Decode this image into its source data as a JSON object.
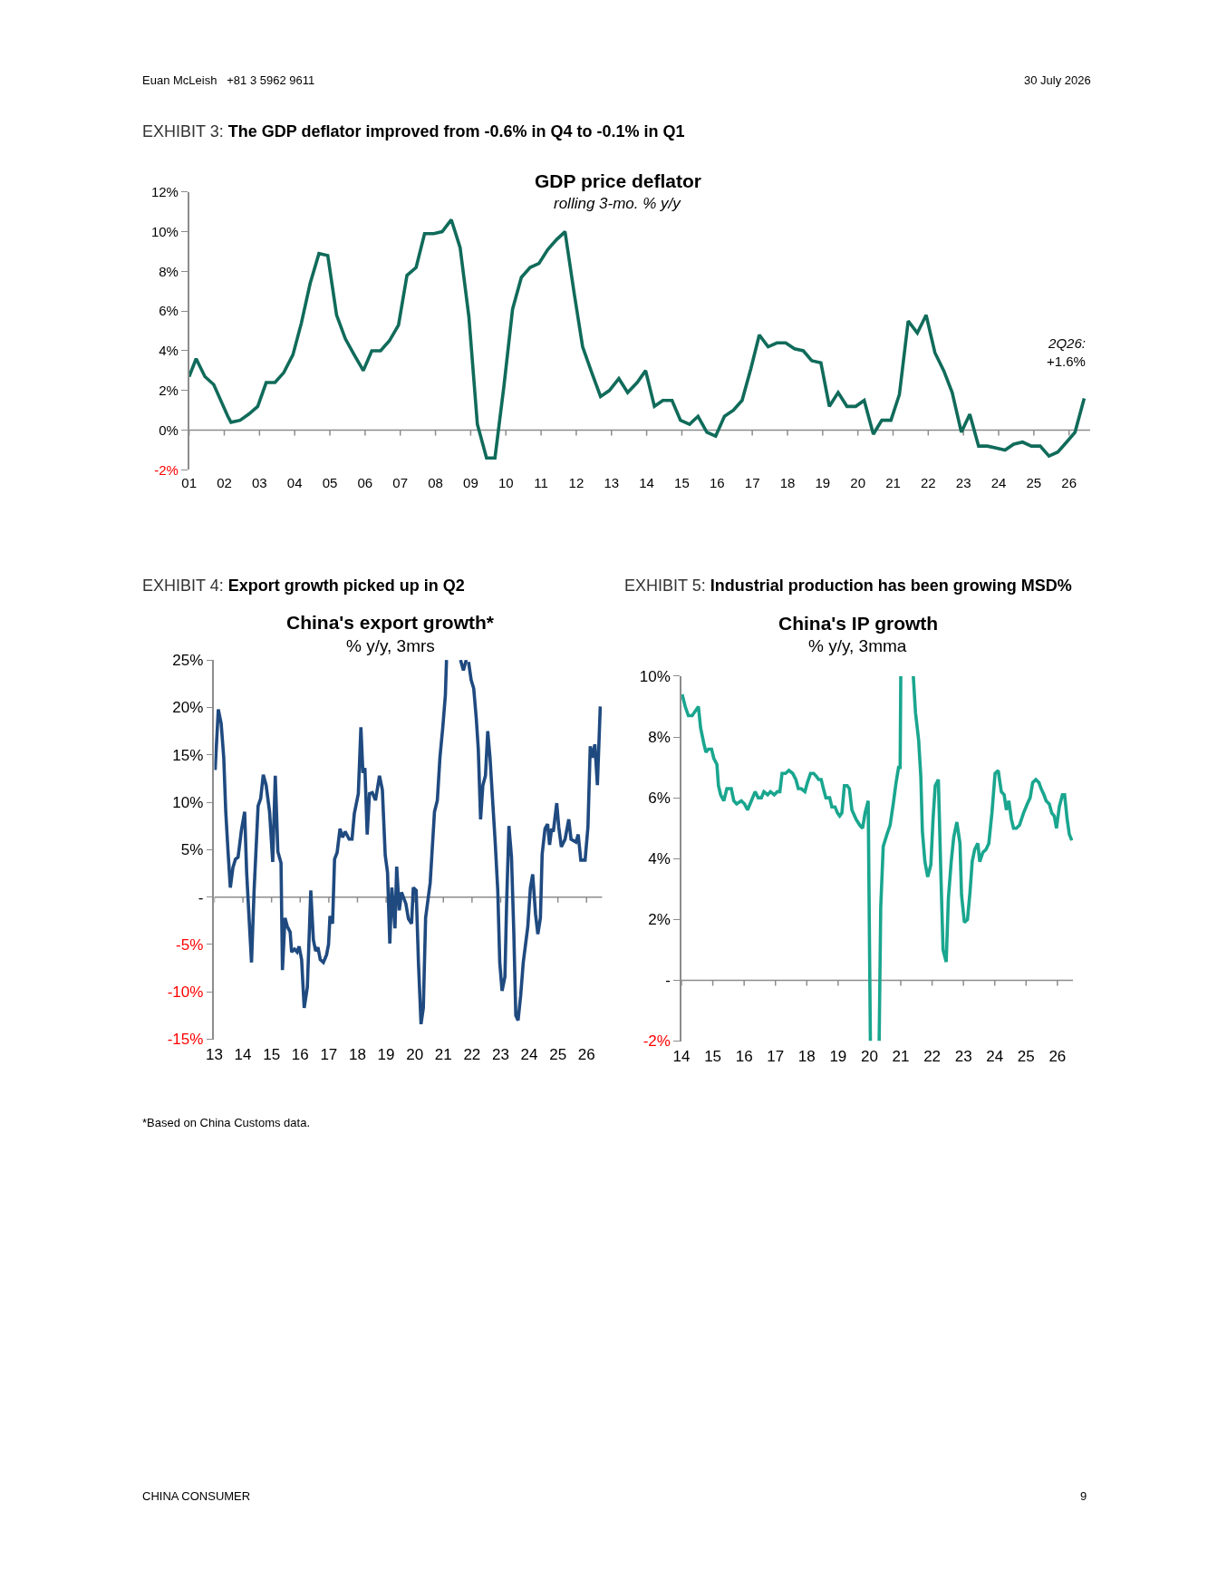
{
  "chart_data": [
    {
      "type": "line",
      "title": "GDP price deflator",
      "subtitle": "rolling 3-mo. % y/y",
      "color": "#106b5a",
      "annotations": [
        "Euan McLeish   +81 3 5962 9611",
        "30 July 2026",
        "EXHIBIT 3: The GDP deflator improved from -0.6% in Q4 to -0.1% in Q1",
        {
          "text": "2Q26:\n+1.6%",
          "x": 2026.43,
          "y": 1.61
        }
      ],
      "x": [
        2001.0,
        2001.2,
        2001.45,
        2001.7,
        2001.95,
        2002.1,
        2002.19,
        2002.45,
        2002.69,
        2002.95,
        2003.19,
        2003.44,
        2003.69,
        2003.95,
        2004.19,
        2004.44,
        2004.69,
        2004.94,
        2005.19,
        2005.44,
        2005.69,
        2005.95,
        2006.19,
        2006.44,
        2006.69,
        2006.95,
        2007.19,
        2007.45,
        2007.69,
        2007.95,
        2008.19,
        2008.45,
        2008.7,
        2008.95,
        2009.19,
        2009.45,
        2009.69,
        2009.95,
        2010.19,
        2010.44,
        2010.69,
        2010.94,
        2011.19,
        2011.44,
        2011.68,
        2011.94,
        2012.18,
        2012.44,
        2012.69,
        2012.94,
        2013.21,
        2013.46,
        2013.73,
        2013.97,
        2014.22,
        2014.46,
        2014.72,
        2014.96,
        2015.22,
        2015.46,
        2015.71,
        2015.96,
        2016.21,
        2016.46,
        2016.71,
        2016.96,
        2017.2,
        2017.45,
        2017.7,
        2017.95,
        2018.2,
        2018.45,
        2018.69,
        2018.95,
        2019.19,
        2019.44,
        2019.69,
        2019.94,
        2020.18,
        2020.44,
        2020.68,
        2020.94,
        2021.18,
        2021.43,
        2021.69,
        2021.94,
        2022.19,
        2022.44,
        2022.68,
        2022.94,
        2023.18,
        2023.43,
        2023.68,
        2023.93,
        2024.18,
        2024.43,
        2024.68,
        2024.93,
        2025.18,
        2025.43,
        2025.68,
        2025.93,
        2026.17,
        2026.43
      ],
      "values": [
        2.7,
        3.6,
        2.7,
        2.3,
        1.3,
        0.7,
        0.4,
        0.5,
        0.8,
        1.2,
        2.4,
        2.4,
        2.9,
        3.8,
        5.4,
        7.4,
        8.9,
        8.8,
        5.8,
        4.6,
        3.8,
        3.0,
        4.0,
        4.0,
        4.5,
        5.3,
        7.8,
        8.2,
        9.9,
        9.9,
        10.0,
        10.6,
        9.2,
        5.7,
        0.3,
        -1.4,
        -1.4,
        2.3,
        6.1,
        7.7,
        8.2,
        8.4,
        9.1,
        9.6,
        10.0,
        6.9,
        4.2,
        2.9,
        1.7,
        2.0,
        2.6,
        1.9,
        2.4,
        3.0,
        1.2,
        1.5,
        1.5,
        0.5,
        0.3,
        0.7,
        -0.1,
        -0.3,
        0.7,
        1.0,
        1.5,
        3.1,
        4.8,
        4.2,
        4.4,
        4.4,
        4.1,
        4.0,
        3.5,
        3.4,
        1.2,
        1.9,
        1.2,
        1.2,
        1.5,
        -0.2,
        0.5,
        0.5,
        1.8,
        5.5,
        4.9,
        5.8,
        3.9,
        3.0,
        1.9,
        -0.1,
        0.8,
        -0.8,
        -0.8,
        -0.9,
        -1.0,
        -0.7,
        -0.6,
        -0.8,
        -0.8,
        -1.3,
        -1.1,
        -0.6,
        -0.1,
        1.6
      ],
      "xlim": [
        2001,
        2026.6
      ],
      "xticks": [
        {
          "value": 2001,
          "label": "01"
        },
        {
          "value": 2002,
          "label": "02"
        },
        {
          "value": 2003,
          "label": "03"
        },
        {
          "value": 2004,
          "label": "04"
        },
        {
          "value": 2005,
          "label": "05"
        },
        {
          "value": 2006,
          "label": "06"
        },
        {
          "value": 2007,
          "label": "07"
        },
        {
          "value": 2008,
          "label": "08"
        },
        {
          "value": 2009,
          "label": "09"
        },
        {
          "value": 2010,
          "label": "10"
        },
        {
          "value": 2011,
          "label": "11"
        },
        {
          "value": 2012,
          "label": "12"
        },
        {
          "value": 2013,
          "label": "13"
        },
        {
          "value": 2014,
          "label": "14"
        },
        {
          "value": 2015,
          "label": "15"
        },
        {
          "value": 2016,
          "label": "16"
        },
        {
          "value": 2017,
          "label": "17"
        },
        {
          "value": 2018,
          "label": "18"
        },
        {
          "value": 2019,
          "label": "19"
        },
        {
          "value": 2020,
          "label": "20"
        },
        {
          "value": 2021,
          "label": "21"
        },
        {
          "value": 2022,
          "label": "22"
        },
        {
          "value": 2023,
          "label": "23"
        },
        {
          "value": 2024,
          "label": "24"
        },
        {
          "value": 2025,
          "label": "25"
        },
        {
          "value": 2026,
          "label": "26"
        }
      ],
      "ylim": [
        -2,
        12
      ],
      "yticks": [
        {
          "value": -2,
          "label": "-2%"
        },
        {
          "value": 0,
          "label": "0%"
        },
        {
          "value": 2,
          "label": "2%"
        },
        {
          "value": 4,
          "label": "4%"
        },
        {
          "value": 6,
          "label": "6%"
        },
        {
          "value": 8,
          "label": "8%"
        },
        {
          "value": 10,
          "label": "10%"
        },
        {
          "value": 12,
          "label": "12%"
        }
      ]
    },
    {
      "type": "line",
      "title": "China's export growth*",
      "subtitle": "% y/y, 3mrs",
      "color": "#1f4a80",
      "annotations": [
        "EXHIBIT 4: Export growth picked up in Q2",
        "*Based on China Customs data."
      ],
      "x": [
        2013.03,
        2013.14,
        2013.24,
        2013.33,
        2013.4,
        2013.48,
        2013.56,
        2013.65,
        2013.74,
        2013.83,
        2013.95,
        2014.06,
        2014.13,
        2014.22,
        2014.3,
        2014.39,
        2014.53,
        2014.62,
        2014.71,
        2014.81,
        2014.93,
        2015.04,
        2015.13,
        2015.22,
        2015.33,
        2015.38,
        2015.47,
        2015.55,
        2015.65,
        2015.7,
        2015.8,
        2015.89,
        2015.96,
        2016.05,
        2016.14,
        2016.25,
        2016.37,
        2016.46,
        2016.54,
        2016.62,
        2016.7,
        2016.81,
        2016.92,
        2016.99,
        2017.04,
        2017.13,
        2017.2,
        2017.29,
        2017.39,
        2017.48,
        2017.57,
        2017.71,
        2017.81,
        2017.89,
        2018.03,
        2018.12,
        2018.19,
        2018.26,
        2018.34,
        2018.42,
        2018.52,
        2018.63,
        2018.77,
        2018.87,
        2018.97,
        2019.05,
        2019.13,
        2019.2,
        2019.31,
        2019.37,
        2019.46,
        2019.54,
        2019.69,
        2019.78,
        2019.89,
        2019.95,
        2020.05,
        2020.13,
        2020.22,
        2020.3,
        2020.38,
        2020.54,
        2020.69,
        2020.79,
        2020.88,
        2020.98,
        2021.07,
        2021.11,
        2021.35,
        2021.6,
        2021.7,
        2021.8,
        2021.84,
        2021.88,
        2021.97,
        2022.06,
        2022.15,
        2022.22,
        2022.3,
        2022.38,
        2022.47,
        2022.55,
        2022.63,
        2022.72,
        2022.81,
        2022.9,
        2022.97,
        2023.05,
        2023.15,
        2023.21,
        2023.29,
        2023.38,
        2023.46,
        2023.53,
        2023.61,
        2023.7,
        2023.79,
        2023.95,
        2024.04,
        2024.12,
        2024.22,
        2024.3,
        2024.39,
        2024.45,
        2024.55,
        2024.64,
        2024.71,
        2024.78,
        2024.84,
        2024.96,
        2025.03,
        2025.12,
        2025.25,
        2025.38,
        2025.46,
        2025.63,
        2025.71,
        2025.8,
        2025.95,
        2026.05,
        2026.13,
        2026.2,
        2026.29,
        2026.38,
        2026.48
      ],
      "values": [
        13.4,
        19.8,
        18.3,
        14.7,
        9.0,
        4.8,
        1.0,
        3.1,
        4.0,
        4.2,
        7.1,
        9.0,
        2.6,
        -2.5,
        -6.9,
        0.7,
        9.6,
        10.4,
        12.9,
        11.8,
        9.0,
        3.7,
        12.8,
        4.8,
        3.6,
        -7.7,
        -2.2,
        -3.1,
        -3.7,
        -5.8,
        -5.5,
        -5.8,
        -5.2,
        -6.6,
        -11.7,
        -9.5,
        0.7,
        -4.5,
        -5.7,
        -5.3,
        -6.6,
        -6.9,
        -6.1,
        -5.0,
        -2.0,
        -2.8,
        4.0,
        4.7,
        7.2,
        6.3,
        6.9,
        6.1,
        6.1,
        8.8,
        10.9,
        17.9,
        13.1,
        13.6,
        6.6,
        10.9,
        11.0,
        10.2,
        12.8,
        11.3,
        4.4,
        2.6,
        -4.9,
        1.0,
        -3.3,
        3.2,
        -1.4,
        0.5,
        -0.7,
        -2.3,
        -2.8,
        1.0,
        0.7,
        -6.9,
        -13.4,
        -11.7,
        -2.2,
        1.5,
        9.0,
        10.2,
        14.7,
        17.9,
        21.3,
        25.0,
        null,
        25.0,
        23.9,
        25.0,
        null,
        24.8,
        22.9,
        22.0,
        18.8,
        15.6,
        8.2,
        11.8,
        12.8,
        17.5,
        14.7,
        10.2,
        5.8,
        0.7,
        -6.9,
        -9.9,
        -8.4,
        -0.6,
        7.5,
        4.2,
        -3.7,
        -12.5,
        -13.0,
        -10.4,
        -6.9,
        -3.1,
        1.0,
        2.4,
        -1.8,
        -3.9,
        -2.2,
        4.5,
        7.2,
        7.7,
        5.5,
        7.2,
        6.9,
        9.9,
        7.4,
        5.3,
        6.1,
        8.2,
        6.1,
        5.8,
        6.6,
        3.9,
        3.9,
        7.4,
        15.9,
        14.7,
        16.1,
        11.8,
        20.1
      ],
      "xlim": [
        2013,
        2026.55
      ],
      "xticks": [
        {
          "value": 2013,
          "label": "13"
        },
        {
          "value": 2014,
          "label": "14"
        },
        {
          "value": 2015,
          "label": "15"
        },
        {
          "value": 2016,
          "label": "16"
        },
        {
          "value": 2017,
          "label": "17"
        },
        {
          "value": 2018,
          "label": "18"
        },
        {
          "value": 2019,
          "label": "19"
        },
        {
          "value": 2020,
          "label": "20"
        },
        {
          "value": 2021,
          "label": "21"
        },
        {
          "value": 2022,
          "label": "22"
        },
        {
          "value": 2023,
          "label": "23"
        },
        {
          "value": 2024,
          "label": "24"
        },
        {
          "value": 2025,
          "label": "25"
        },
        {
          "value": 2026,
          "label": "26"
        }
      ],
      "ylim": [
        -15,
        25
      ],
      "yticks": [
        {
          "value": -15,
          "label": "-15%"
        },
        {
          "value": -10,
          "label": "-10%"
        },
        {
          "value": -5,
          "label": "-5%"
        },
        {
          "value": 0,
          "label": "-"
        },
        {
          "value": 5,
          "label": "5%"
        },
        {
          "value": 10,
          "label": "10%"
        },
        {
          "value": 15,
          "label": "15%"
        },
        {
          "value": 20,
          "label": "20%"
        },
        {
          "value": 25,
          "label": "25%"
        }
      ]
    },
    {
      "type": "line",
      "title": "China's IP growth",
      "subtitle": "% y/y, 3mma",
      "color": "#1aa68f",
      "annotations": [
        "EXHIBIT 5: Industrial production has been growing MSD%",
        "CHINA CONSUMER",
        "9"
      ],
      "x": [
        2014.02,
        2014.12,
        2014.22,
        2014.34,
        2014.54,
        2014.61,
        2014.71,
        2014.78,
        2014.86,
        2014.96,
        2015.03,
        2015.13,
        2015.18,
        2015.25,
        2015.35,
        2015.45,
        2015.59,
        2015.67,
        2015.76,
        2015.91,
        2016.01,
        2016.11,
        2016.23,
        2016.35,
        2016.45,
        2016.55,
        2016.63,
        2016.75,
        2016.84,
        2016.96,
        2017.06,
        2017.14,
        2017.21,
        2017.32,
        2017.43,
        2017.55,
        2017.65,
        2017.73,
        2017.82,
        2017.94,
        2018.02,
        2018.12,
        2018.22,
        2018.31,
        2018.38,
        2018.46,
        2018.53,
        2018.61,
        2018.73,
        2018.8,
        2018.9,
        2018.98,
        2019.05,
        2019.12,
        2019.2,
        2019.29,
        2019.36,
        2019.44,
        2019.57,
        2019.69,
        2019.78,
        2019.86,
        2019.96,
        2020.03,
        2020.17,
        2020.31,
        2020.36,
        2020.44,
        2020.56,
        2020.66,
        2020.76,
        2020.85,
        2020.93,
        2020.98,
        2021.0,
        2021.2,
        2021.4,
        2021.47,
        2021.57,
        2021.64,
        2021.69,
        2021.77,
        2021.86,
        2021.96,
        2022.03,
        2022.1,
        2022.2,
        2022.28,
        2022.35,
        2022.45,
        2022.52,
        2022.61,
        2022.69,
        2022.79,
        2022.89,
        2022.94,
        2023.03,
        2023.13,
        2023.21,
        2023.28,
        2023.36,
        2023.46,
        2023.52,
        2023.62,
        2023.72,
        2023.81,
        2023.91,
        2024.01,
        2024.11,
        2024.21,
        2024.3,
        2024.37,
        2024.45,
        2024.53,
        2024.6,
        2024.69,
        2024.79,
        2024.92,
        2025.04,
        2025.13,
        2025.21,
        2025.31,
        2025.41,
        2025.48,
        2025.57,
        2025.64,
        2025.74,
        2025.82,
        2025.9,
        2025.97,
        2026.06,
        2026.16,
        2026.23,
        2026.31,
        2026.38,
        2026.46
      ],
      "values": [
        9.4,
        9.0,
        8.7,
        8.7,
        9.0,
        8.3,
        7.8,
        7.5,
        7.6,
        7.6,
        7.3,
        7.1,
        6.4,
        6.1,
        5.9,
        6.3,
        6.3,
        5.9,
        5.8,
        5.9,
        5.8,
        5.6,
        5.9,
        6.2,
        6.0,
        6.0,
        6.2,
        6.1,
        6.2,
        6.1,
        6.2,
        6.2,
        6.8,
        6.8,
        6.9,
        6.8,
        6.6,
        6.3,
        6.3,
        6.2,
        6.5,
        6.8,
        6.8,
        6.7,
        6.6,
        6.6,
        6.3,
        6.0,
        6.0,
        5.7,
        5.7,
        5.5,
        5.4,
        5.5,
        6.4,
        6.4,
        6.3,
        5.6,
        5.3,
        5.1,
        5.0,
        5.5,
        5.9,
        -2.0,
        null,
        -2.0,
        2.4,
        4.4,
        4.8,
        5.1,
        5.8,
        6.5,
        7.0,
        7.0,
        10.0,
        null,
        10.0,
        8.8,
        7.9,
        6.7,
        4.9,
        3.9,
        3.4,
        3.8,
        5.3,
        6.4,
        6.6,
        3.5,
        1.0,
        0.6,
        2.7,
        3.9,
        4.7,
        5.2,
        4.5,
        2.8,
        1.9,
        2.0,
        2.9,
        3.9,
        4.3,
        4.5,
        3.9,
        4.2,
        4.3,
        4.5,
        5.5,
        6.8,
        6.9,
        6.2,
        6.1,
        5.6,
        5.9,
        5.3,
        5.0,
        5.0,
        5.1,
        5.5,
        5.8,
        6.0,
        6.5,
        6.6,
        6.5,
        6.3,
        6.1,
        5.9,
        5.8,
        5.5,
        5.4,
        5.0,
        5.7,
        6.1,
        6.1,
        5.3,
        4.8,
        4.6
      ],
      "xlim": [
        2014,
        2026.5
      ],
      "xticks": [
        {
          "value": 2014,
          "label": "14"
        },
        {
          "value": 2015,
          "label": "15"
        },
        {
          "value": 2016,
          "label": "16"
        },
        {
          "value": 2017,
          "label": "17"
        },
        {
          "value": 2018,
          "label": "18"
        },
        {
          "value": 2019,
          "label": "19"
        },
        {
          "value": 2020,
          "label": "20"
        },
        {
          "value": 2021,
          "label": "21"
        },
        {
          "value": 2022,
          "label": "22"
        },
        {
          "value": 2023,
          "label": "23"
        },
        {
          "value": 2024,
          "label": "24"
        },
        {
          "value": 2025,
          "label": "25"
        },
        {
          "value": 2026,
          "label": "26"
        }
      ],
      "ylim": [
        -2,
        10
      ],
      "yticks": [
        {
          "value": -2,
          "label": "-2%"
        },
        {
          "value": 0,
          "label": "-"
        },
        {
          "value": 2,
          "label": "2%"
        },
        {
          "value": 4,
          "label": "4%"
        },
        {
          "value": 6,
          "label": "6%"
        },
        {
          "value": 8,
          "label": "8%"
        },
        {
          "value": 10,
          "label": "10%"
        }
      ]
    }
  ]
}
